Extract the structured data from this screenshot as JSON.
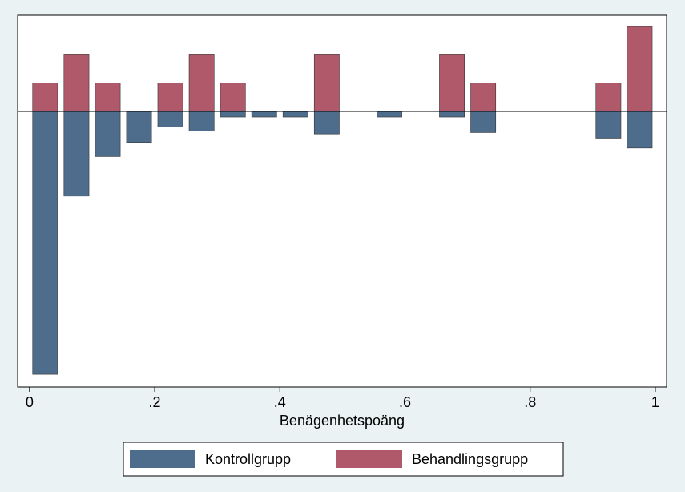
{
  "chart_data": {
    "type": "histogram",
    "xlabel": "Benägenhetspoäng",
    "bins": [
      0,
      0.05,
      0.1,
      0.15,
      0.2,
      0.25,
      0.3,
      0.35,
      0.4,
      0.45,
      0.5,
      0.55,
      0.6,
      0.65,
      0.7,
      0.75,
      0.8,
      0.85,
      0.9,
      0.95,
      1
    ],
    "series": [
      {
        "name": "Kontrollgrupp",
        "color": "#4e6d8c",
        "values": [
          -9.3,
          -3,
          -1.6,
          -1.1,
          -0.55,
          -0.7,
          -0.2,
          -0.2,
          -0.2,
          -0.8,
          0,
          -0.2,
          0,
          -0.2,
          -0.75,
          0,
          0,
          0,
          -0.95,
          -1.3
        ]
      },
      {
        "name": "Behandlingsgrupp",
        "color": "#b0596a",
        "values": [
          1,
          2,
          1,
          0,
          1,
          2,
          1,
          0,
          0,
          2,
          0,
          0,
          0,
          2,
          1,
          0,
          0,
          0,
          1,
          3
        ]
      }
    ],
    "xlim": [
      -0.019,
      1.018
    ],
    "xticks": [
      0,
      {
        "value": 0.2,
        "label": ".2"
      },
      {
        "value": 0.4,
        "label": ".4"
      },
      {
        "value": 0.6,
        "label": ".6"
      },
      {
        "value": 0.8,
        "label": ".8"
      },
      1
    ],
    "ylim": [
      -9.75,
      3.4
    ],
    "grid": false
  }
}
